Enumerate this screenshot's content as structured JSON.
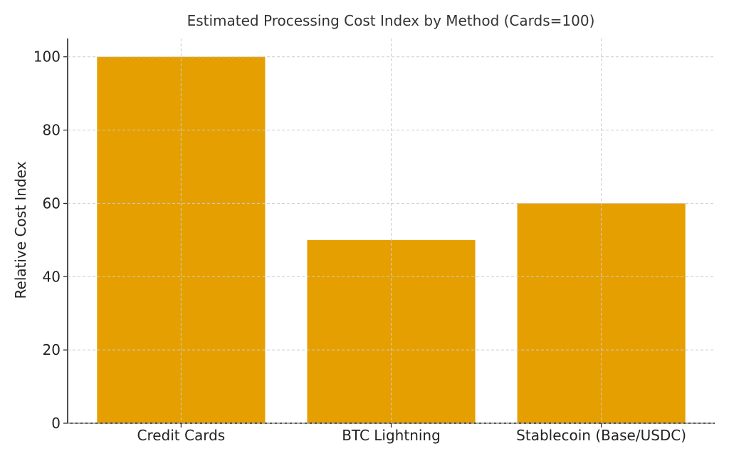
{
  "chart_data": {
    "type": "bar",
    "title": "Estimated Processing Cost Index by Method (Cards=100)",
    "xlabel": "",
    "ylabel": "Relative Cost Index",
    "categories": [
      "Credit Cards",
      "BTC Lightning",
      "Stablecoin (Base/USDC)"
    ],
    "values": [
      100,
      50,
      60
    ],
    "ylim": [
      0,
      105
    ],
    "yticks": [
      0,
      20,
      40,
      60,
      80,
      100
    ],
    "grid": true,
    "bar_color": "#E69F00"
  }
}
